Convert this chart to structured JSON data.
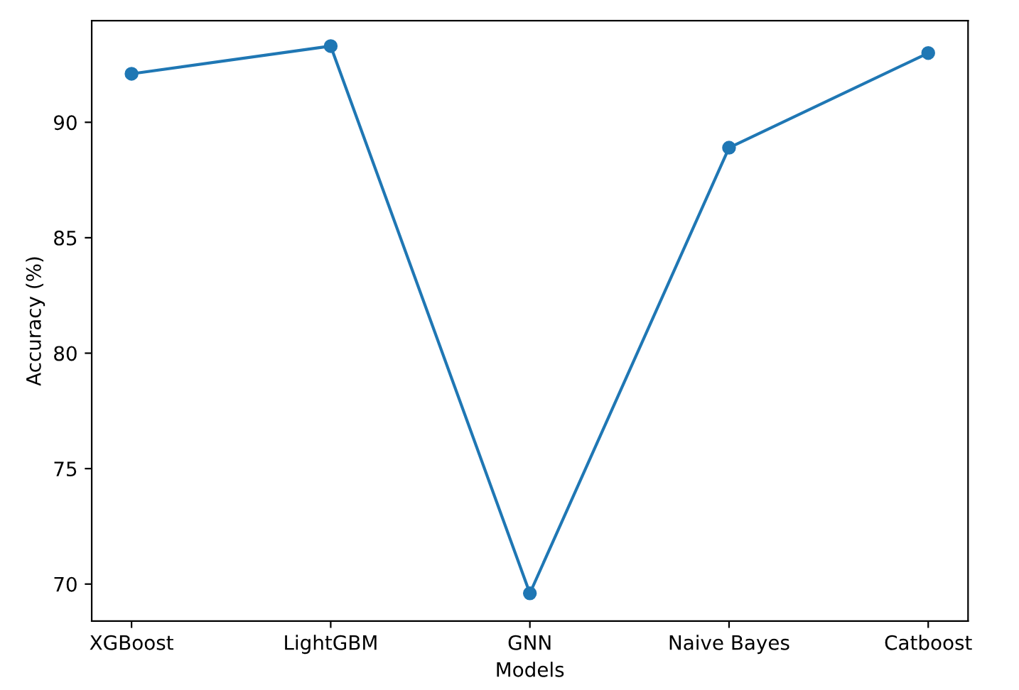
{
  "chart_data": {
    "type": "line",
    "xlabel": "Models",
    "ylabel": "Accuracy (%)",
    "categories": [
      "XGBoost",
      "LightGBM",
      "GNN",
      "Naive Bayes",
      "Catboost"
    ],
    "values": [
      92.1,
      93.3,
      69.6,
      88.9,
      93.0
    ],
    "color": "#1f77b4",
    "marker": "circle",
    "line_style": "solid",
    "ylim": [
      68.4,
      94.4
    ],
    "yticks": [
      70,
      75,
      80,
      85,
      90
    ],
    "grid": false
  }
}
